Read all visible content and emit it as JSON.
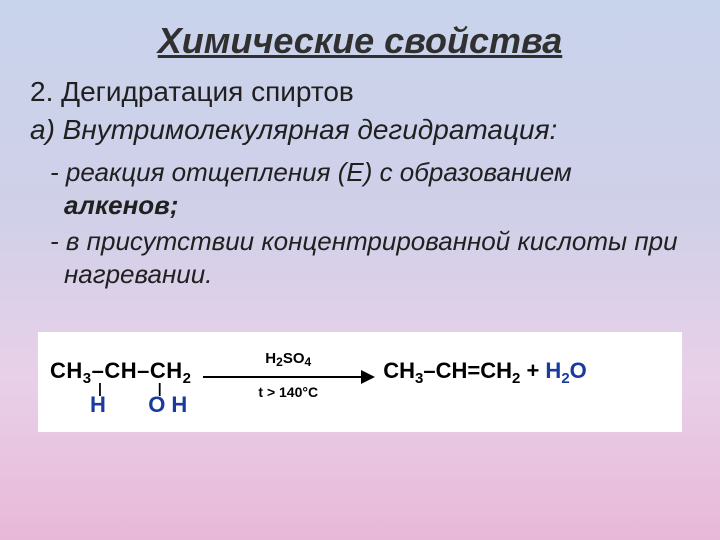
{
  "title": "Химические свойства",
  "subtitle1": "2. Дегидратация спиртов",
  "subtitle2": "а) Внутримолекулярная дегидратация:",
  "bullet1_prefix": "- реакция отщепления (Е) с образованием ",
  "bullet1_bold": "алкенов;",
  "bullet2": "- в присутствии концентрированной кислоты при нагревании.",
  "reaction": {
    "reactant_top": "CH₃–CH–CH₂",
    "reactant_bonds": "||",
    "reactant_h": "H",
    "reactant_oh": "OH",
    "arrow_top": "H₂SO₄",
    "arrow_bottom": "t > 140°С",
    "product_ch3": "CH",
    "product_rest": "–CH=CH",
    "plus": " + ",
    "water_h": "H",
    "water_o": "O"
  },
  "colors": {
    "bg_top": "#c8d4ec",
    "bg_bottom": "#e8b8d8",
    "text": "#202020",
    "formula_accent": "#1a3a9e",
    "reaction_bg": "#ffffff"
  }
}
